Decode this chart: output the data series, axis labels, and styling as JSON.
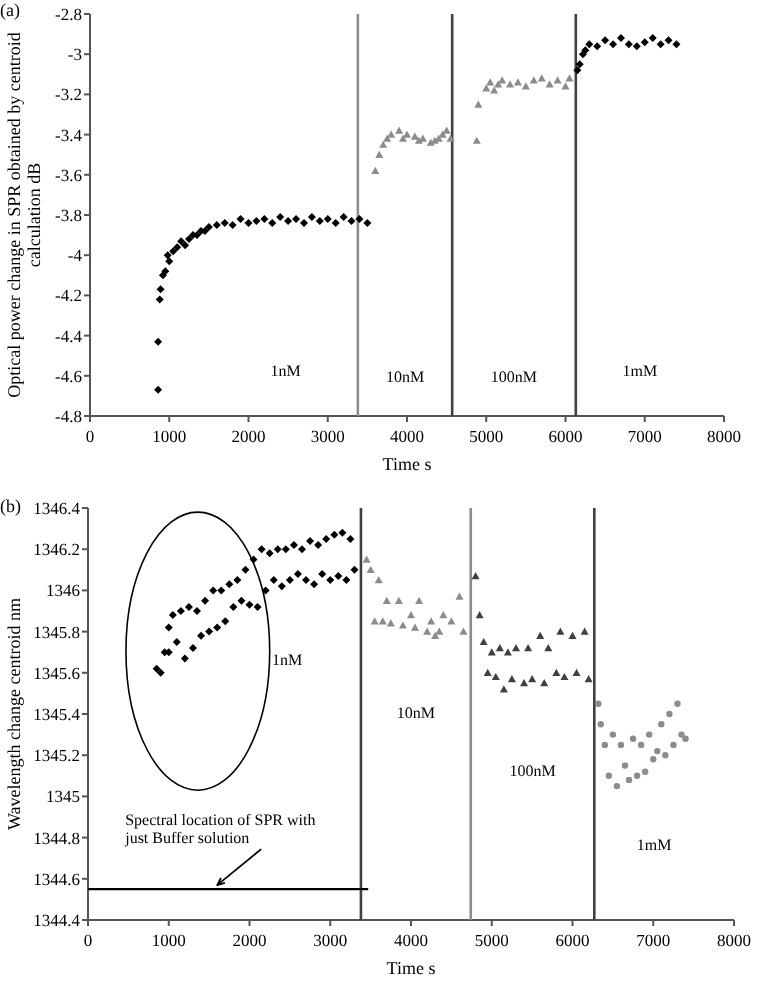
{
  "chart_data": [
    {
      "type": "scatter",
      "title": "(a)",
      "xlabel": "Time s",
      "ylabel": "Optical power change in SPR obtained by centroid calculation dB",
      "xlim": [
        0,
        8000
      ],
      "xticks": [
        0,
        1000,
        2000,
        3000,
        4000,
        5000,
        6000,
        7000,
        8000
      ],
      "ylim": [
        -4.8,
        -2.8
      ],
      "yticks": [
        -4.8,
        -4.6,
        -4.4,
        -4.2,
        -4,
        -3.8,
        -3.6,
        -3.4,
        -3.2,
        -3,
        -2.8
      ],
      "grid": false,
      "series": [
        {
          "color": "#000000",
          "marker": "diamond",
          "x": [
            860,
            860,
            880,
            890,
            920,
            950,
            980,
            1000,
            1050,
            1100,
            1150,
            1200,
            1250,
            1300,
            1350,
            1400,
            1450,
            1500,
            1600,
            1700,
            1800,
            1900,
            2000,
            2100,
            2200,
            2300,
            2400,
            2500,
            2600,
            2700,
            2800,
            2900,
            3000,
            3100,
            3200,
            3300,
            3400,
            3500,
            6150,
            6180,
            6220,
            6250,
            6300,
            6400,
            6500,
            6600,
            6700,
            6800,
            6900,
            7000,
            7100,
            7200,
            7300,
            7400
          ],
          "values": [
            -4.67,
            -4.43,
            -4.22,
            -4.17,
            -4.1,
            -4.08,
            -4.0,
            -4.03,
            -3.98,
            -3.96,
            -3.93,
            -3.95,
            -3.92,
            -3.9,
            -3.9,
            -3.88,
            -3.88,
            -3.86,
            -3.85,
            -3.84,
            -3.85,
            -3.82,
            -3.84,
            -3.83,
            -3.82,
            -3.84,
            -3.81,
            -3.83,
            -3.82,
            -3.84,
            -3.81,
            -3.83,
            -3.82,
            -3.84,
            -3.81,
            -3.83,
            -3.82,
            -3.84,
            -3.08,
            -3.05,
            -3.0,
            -2.98,
            -2.95,
            -2.96,
            -2.93,
            -2.95,
            -2.92,
            -2.95,
            -2.96,
            -2.94,
            -2.92,
            -2.95,
            -2.93,
            -2.95
          ]
        },
        {
          "color": "#8c8c8c",
          "marker": "triangle",
          "x": [
            3600,
            3650,
            3700,
            3750,
            3800,
            3900,
            3950,
            4000,
            4100,
            4150,
            4200,
            4300,
            4350,
            4400,
            4450,
            4500,
            4550,
            4880,
            4900,
            5000,
            5050,
            5100,
            5150,
            5200,
            5300,
            5400,
            5500,
            5600,
            5700,
            5800,
            5900,
            6000,
            6050
          ],
          "values": [
            -3.58,
            -3.5,
            -3.45,
            -3.42,
            -3.4,
            -3.38,
            -3.42,
            -3.4,
            -3.41,
            -3.43,
            -3.42,
            -3.44,
            -3.43,
            -3.42,
            -3.4,
            -3.38,
            -3.42,
            -3.43,
            -3.25,
            -3.17,
            -3.14,
            -3.18,
            -3.15,
            -3.13,
            -3.15,
            -3.14,
            -3.16,
            -3.13,
            -3.12,
            -3.15,
            -3.13,
            -3.16,
            -3.12
          ]
        }
      ],
      "ref_lines": [
        {
          "axis": "x",
          "value": 3380,
          "color": "#8c8c8c"
        },
        {
          "axis": "x",
          "value": 4570,
          "color": "#404040"
        },
        {
          "axis": "x",
          "value": 6130,
          "color": "#404040"
        }
      ],
      "annotations": [
        "1nM",
        "10nM",
        "100nM",
        "1mM"
      ]
    },
    {
      "type": "scatter",
      "title": "(b)",
      "xlabel": "Time s",
      "ylabel": "Wavelength change centroid nm",
      "xlim": [
        0,
        8000
      ],
      "xticks": [
        0,
        1000,
        2000,
        3000,
        4000,
        5000,
        6000,
        7000,
        8000
      ],
      "ylim": [
        1344.4,
        1346.4
      ],
      "yticks": [
        1344.4,
        1344.6,
        1344.8,
        1345,
        1345.2,
        1345.4,
        1345.6,
        1345.8,
        1346,
        1346.2,
        1346.4
      ],
      "grid": false,
      "series": [
        {
          "color": "#000000",
          "marker": "diamond",
          "x": [
            850,
            900,
            950,
            1000,
            1000,
            1050,
            1100,
            1150,
            1200,
            1250,
            1300,
            1350,
            1400,
            1450,
            1500,
            1550,
            1600,
            1650,
            1700,
            1750,
            1800,
            1850,
            1900,
            1950,
            2000,
            2050,
            2100,
            2150,
            2200,
            2250,
            2300,
            2350,
            2400,
            2450,
            2500,
            2550,
            2600,
            2650,
            2700,
            2750,
            2800,
            2850,
            2900,
            2950,
            3000,
            3050,
            3100,
            3150,
            3200,
            3250,
            3300
          ],
          "values": [
            1345.62,
            1345.6,
            1345.7,
            1345.82,
            1345.7,
            1345.88,
            1345.75,
            1345.9,
            1345.67,
            1345.92,
            1345.72,
            1345.9,
            1345.78,
            1345.95,
            1345.8,
            1346.0,
            1345.82,
            1346.0,
            1345.85,
            1346.03,
            1345.92,
            1346.05,
            1345.95,
            1346.1,
            1345.93,
            1346.15,
            1345.92,
            1346.2,
            1346.0,
            1346.18,
            1346.05,
            1346.2,
            1346.02,
            1346.2,
            1346.05,
            1346.22,
            1346.08,
            1346.2,
            1346.05,
            1346.24,
            1346.03,
            1346.22,
            1346.08,
            1346.25,
            1346.05,
            1346.27,
            1346.07,
            1346.28,
            1346.05,
            1346.25,
            1346.1
          ]
        },
        {
          "color": "#8c8c8c",
          "marker": "triangle",
          "x": [
            3450,
            3500,
            3550,
            3600,
            3650,
            3700,
            3750,
            3850,
            3900,
            4000,
            4050,
            4100,
            4200,
            4250,
            4300,
            4350,
            4400,
            4500,
            4600,
            4650
          ],
          "values": [
            1346.15,
            1346.1,
            1345.85,
            1346.05,
            1345.85,
            1345.95,
            1345.84,
            1345.95,
            1345.83,
            1345.88,
            1345.82,
            1345.95,
            1345.8,
            1345.85,
            1345.78,
            1345.8,
            1345.88,
            1345.85,
            1345.97,
            1345.8
          ]
        },
        {
          "color": "#404040",
          "marker": "triangle",
          "x": [
            4800,
            4850,
            4900,
            4950,
            5000,
            5050,
            5100,
            5150,
            5200,
            5250,
            5300,
            5400,
            5450,
            5500,
            5600,
            5650,
            5700,
            5800,
            5850,
            5900,
            6000,
            6050,
            6150,
            6200
          ],
          "values": [
            1346.07,
            1345.88,
            1345.75,
            1345.6,
            1345.7,
            1345.58,
            1345.72,
            1345.52,
            1345.7,
            1345.57,
            1345.72,
            1345.55,
            1345.72,
            1345.57,
            1345.78,
            1345.55,
            1345.72,
            1345.6,
            1345.8,
            1345.58,
            1345.78,
            1345.6,
            1345.8,
            1345.57
          ]
        },
        {
          "color": "#8c8c8c",
          "marker": "circle",
          "x": [
            6320,
            6350,
            6400,
            6450,
            6500,
            6550,
            6600,
            6650,
            6700,
            6750,
            6800,
            6850,
            6900,
            6950,
            7000,
            7050,
            7100,
            7150,
            7200,
            7250,
            7300,
            7350,
            7400
          ],
          "values": [
            1345.45,
            1345.35,
            1345.25,
            1345.1,
            1345.3,
            1345.05,
            1345.25,
            1345.15,
            1345.08,
            1345.28,
            1345.1,
            1345.25,
            1345.12,
            1345.3,
            1345.18,
            1345.22,
            1345.35,
            1345.2,
            1345.4,
            1345.25,
            1345.45,
            1345.3,
            1345.28
          ]
        },
        {
          "type": "line",
          "color": "#000000",
          "marker": "none",
          "x": [
            0,
            3470
          ],
          "values": [
            1344.55,
            1344.55
          ]
        }
      ],
      "ref_lines": [
        {
          "axis": "x",
          "value": 3380,
          "color": "#404040"
        },
        {
          "axis": "x",
          "value": 4740,
          "color": "#8c8c8c"
        },
        {
          "axis": "x",
          "value": 6270,
          "color": "#404040"
        }
      ],
      "annotations": [
        "1nM",
        "10nM",
        "100nM",
        "1mM",
        {
          "text": "Spectral location of SPR with just Buffer solution",
          "x": 1600,
          "y": 1344.55
        }
      ]
    }
  ]
}
